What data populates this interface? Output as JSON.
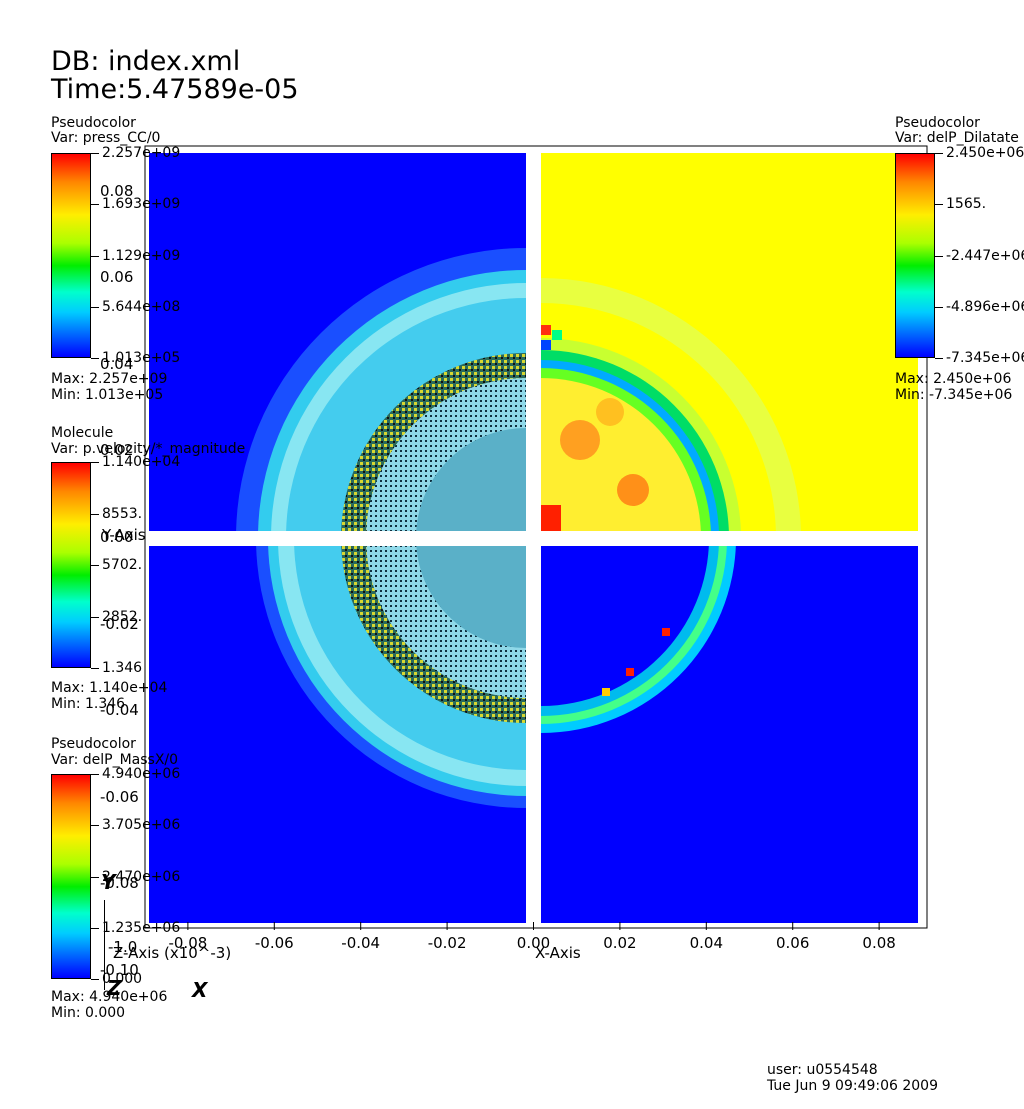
{
  "header": {
    "db": "DB: index.xml",
    "time": "Time:5.47589e-05"
  },
  "footer": {
    "user": "user: u0554548",
    "date": "Tue Jun  9 09:49:06 2009"
  },
  "legends": {
    "press": {
      "kind": "Pseudocolor",
      "var": "Var: press_CC/0",
      "ticks": [
        "2.257e+09",
        "1.693e+09",
        "1.129e+09",
        "5.644e+08",
        "1.013e+05"
      ],
      "max": "Max:  2.257e+09",
      "min": "Min:  1.013e+05"
    },
    "velocity": {
      "kind": "Molecule",
      "var": "Var: p.velocity/*_magnitude",
      "ticks": [
        "1.140e+04",
        "8553.",
        "5702.",
        "2852.",
        "1.346"
      ],
      "max": "Max:  1.140e+04",
      "min": "Min:  1.346"
    },
    "massx": {
      "kind": "Pseudocolor",
      "var": "Var: delP_MassX/0",
      "ticks": [
        "4.940e+06",
        "3.705e+06",
        "2.470e+06",
        "1.235e+06",
        "0.000"
      ],
      "max": "Max:  4.940e+06",
      "min": "Min:  0.000"
    },
    "dilatate": {
      "kind": "Pseudocolor",
      "var": "Var: delP_Dilatate",
      "ticks": [
        "2.450e+06",
        "1565.",
        "-2.447e+06",
        "-4.896e+06",
        "-7.345e+06"
      ],
      "max": "Max:  2.450e+06",
      "min": "Min: -7.345e+06"
    }
  },
  "axes": {
    "z_axis_label": "Z-Axis (x10^-3)",
    "x_axis_label": "X-Axis",
    "y_axis_label": "Y-Axis",
    "triad": {
      "y": "Y",
      "z": "Z",
      "x": "X"
    }
  },
  "chart_data": {
    "type": "heatmap",
    "x_ticks": [
      "-0.08",
      "-0.06",
      "-0.04",
      "-0.02",
      "0.00",
      "0.02",
      "0.04",
      "0.06",
      "0.08"
    ],
    "x_tick_values": [
      -0.08,
      -0.06,
      -0.04,
      -0.02,
      0.0,
      0.02,
      0.04,
      0.06,
      0.08
    ],
    "y_ticks": [
      "0.08",
      "0.06",
      "0.04",
      "0.02",
      "0.00",
      "-0.02",
      "-0.04",
      "-0.06",
      "-0.08",
      "-0.10"
    ],
    "y_tick_values": [
      0.08,
      0.06,
      0.04,
      0.02,
      0.0,
      -0.02,
      -0.04,
      -0.06,
      -0.08,
      -0.1
    ],
    "z_ticks": [
      "-1.0"
    ],
    "xlim": [
      -0.089,
      0.089
    ],
    "ylim": [
      -0.089,
      0.089
    ],
    "panels": [
      "press_CC/0",
      "delP_Dilatate",
      "p.velocity/*_magnitude",
      "delP_MassX/0"
    ],
    "background_colors": {
      "low": "#0000ff",
      "mid": "#ffff00",
      "ring": "#00ccff",
      "particles": "#000000"
    }
  }
}
